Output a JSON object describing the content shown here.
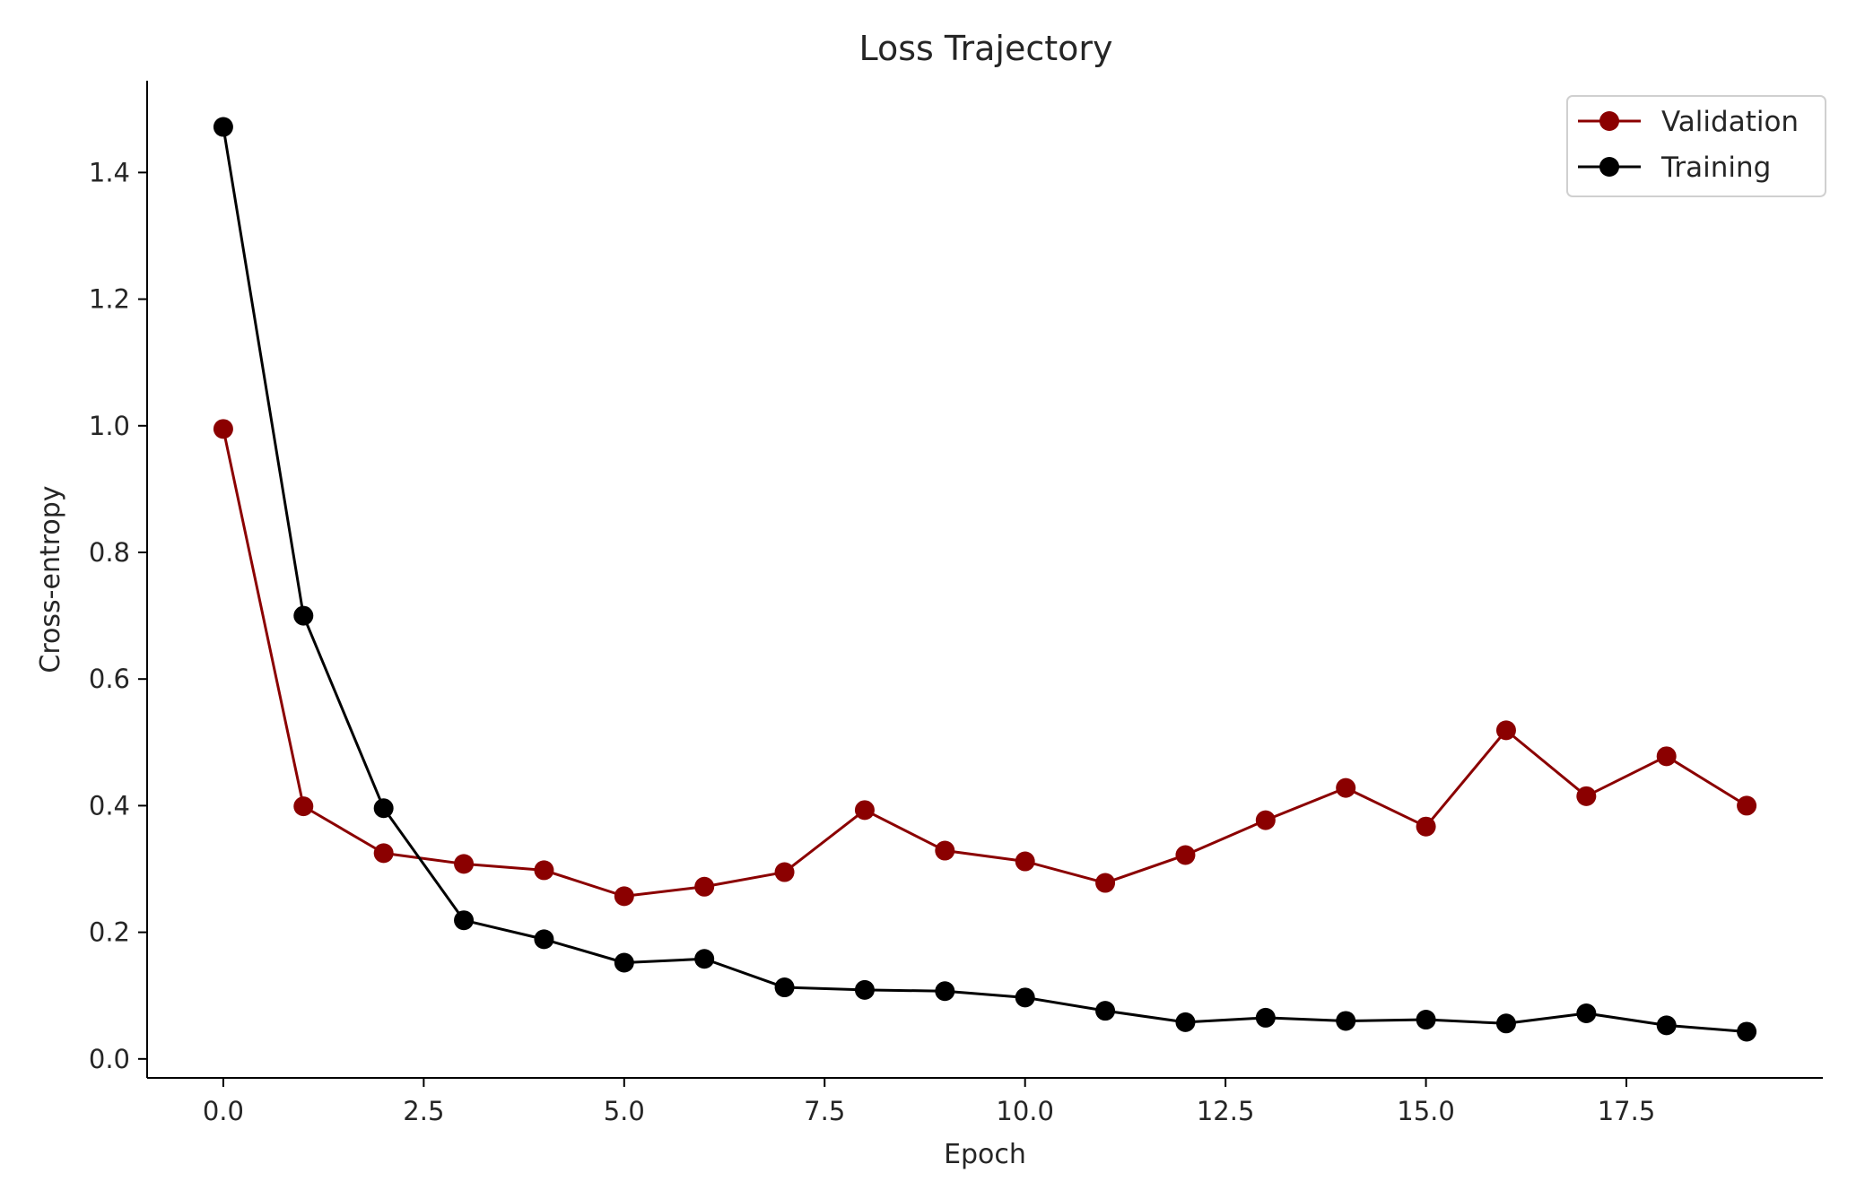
{
  "chart_data": {
    "type": "line",
    "title": "Loss Trajectory",
    "xlabel": "Epoch",
    "ylabel": "Cross-entropy",
    "xlim": [
      -0.95,
      19.95
    ],
    "ylim": [
      -0.03,
      1.545
    ],
    "xticks": [
      0.0,
      2.5,
      5.0,
      7.5,
      10.0,
      12.5,
      15.0,
      17.5
    ],
    "xtick_labels": [
      "0.0",
      "2.5",
      "5.0",
      "7.5",
      "10.0",
      "12.5",
      "15.0",
      "17.5"
    ],
    "yticks": [
      0.0,
      0.2,
      0.4,
      0.6,
      0.8,
      1.0,
      1.2,
      1.4
    ],
    "ytick_labels": [
      "0.0",
      "0.2",
      "0.4",
      "0.6",
      "0.8",
      "1.0",
      "1.2",
      "1.4"
    ],
    "grid": false,
    "legend_position": "top-right",
    "x": [
      0,
      1,
      2,
      3,
      4,
      5,
      6,
      7,
      8,
      9,
      10,
      11,
      12,
      13,
      14,
      15,
      16,
      17,
      18,
      19
    ],
    "series": [
      {
        "name": "Validation",
        "color": "#8b0000",
        "marker": "circle",
        "values": [
          0.995,
          0.399,
          0.325,
          0.308,
          0.298,
          0.257,
          0.272,
          0.295,
          0.393,
          0.329,
          0.312,
          0.278,
          0.322,
          0.377,
          0.428,
          0.367,
          0.519,
          0.415,
          0.478,
          0.4
        ]
      },
      {
        "name": "Training",
        "color": "#000000",
        "marker": "circle",
        "values": [
          1.472,
          0.7,
          0.396,
          0.219,
          0.189,
          0.152,
          0.158,
          0.113,
          0.109,
          0.107,
          0.097,
          0.076,
          0.058,
          0.065,
          0.06,
          0.062,
          0.056,
          0.072,
          0.053,
          0.043
        ]
      }
    ]
  }
}
